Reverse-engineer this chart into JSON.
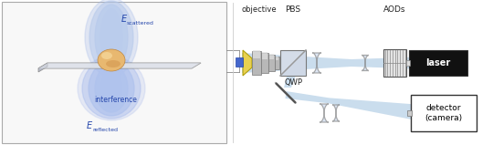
{
  "fig_width": 5.4,
  "fig_height": 1.59,
  "dpi": 100,
  "bg_color": "#ffffff",
  "left_panel": {
    "text_color": "#2244aa",
    "box_color": "#f8f8f8",
    "box_edge": "#aaaaaa"
  },
  "right_panel": {
    "label_objective": "objective",
    "label_pbs": "PBS",
    "label_qwp": "QWP",
    "label_aods": "AODs",
    "label_laser": "laser",
    "label_detector": "detector\n(camera)",
    "beam_color": "#8ab4d8",
    "beam_alpha": 0.45,
    "laser_box_color": "#111111",
    "laser_text_color": "#ffffff",
    "detector_box_color": "#ffffff",
    "detector_text_color": "#000000",
    "text_color": "#222222"
  }
}
